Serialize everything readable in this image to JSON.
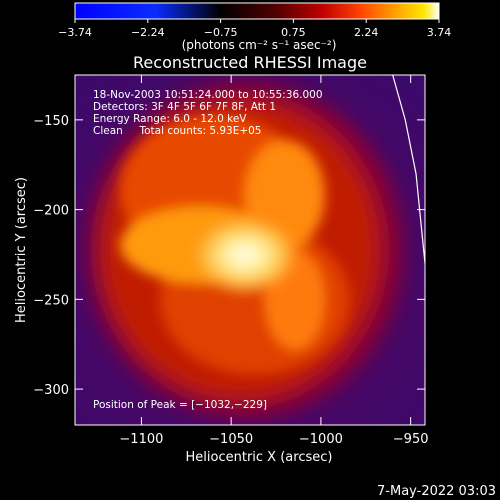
{
  "colorbar": {
    "ticks": [
      "-3.74",
      "-2.24",
      "-0.75",
      "0.75",
      "2.24",
      "3.74"
    ],
    "unit_label": "(photons cm⁻² s⁻¹ asec⁻²)",
    "colors": [
      "#0000ff",
      "#0044ff",
      "#000000",
      "#400000",
      "#b00000",
      "#ff3c00",
      "#ff9a00",
      "#ffe000",
      "#ffffff"
    ]
  },
  "chart_data": {
    "type": "heatmap",
    "title": "Reconstructed RHESSI Image",
    "xlabel": "Heliocentric X (arcsec)",
    "ylabel": "Heliocentric Y (arcsec)",
    "xlim": [
      -1137,
      -942
    ],
    "ylim": [
      -320,
      -125
    ],
    "xticks": [
      -1100,
      -1050,
      -1000,
      -950
    ],
    "xtick_labels": [
      "−1100",
      "−1050",
      "−1000",
      "−950"
    ],
    "yticks": [
      -150,
      -200,
      -250,
      -300
    ],
    "ytick_labels": [
      "−150",
      "−200",
      "−250",
      "−300"
    ],
    "peak": [
      -1032,
      -229
    ],
    "annotation_lines": [
      "18-Nov-2003 10:51:24.000 to 10:55:36.000",
      "Detectors: 3F 4F 5F 6F 7F 8F, Att 1",
      "Energy Range: 6.0 - 12.0 keV",
      "Clean     Total counts: 5.93E+05"
    ],
    "peak_label": "Position of Peak = [−1032,−229]",
    "limb_curve": [
      [
        -960,
        -125
      ],
      [
        -953,
        -150
      ],
      [
        -947,
        -180
      ],
      [
        -942,
        -230
      ]
    ],
    "grid": false,
    "colorbar_range": [
      -3.74,
      3.74
    ]
  },
  "footer": {
    "date": "7-May-2022 03:03"
  }
}
